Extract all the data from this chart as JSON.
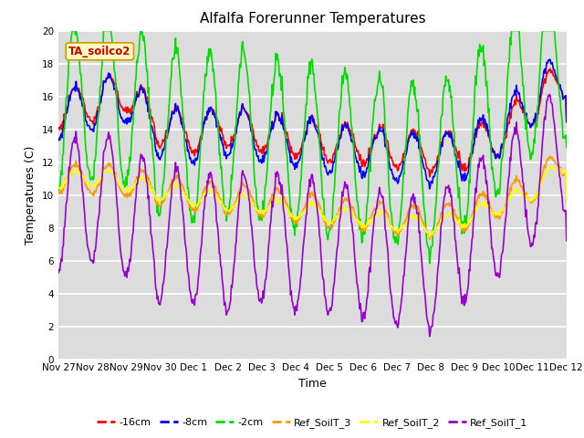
{
  "title": "Alfalfa Forerunner Temperatures",
  "xlabel": "Time",
  "ylabel": "Temperatures (C)",
  "ylim": [
    0,
    20
  ],
  "yticks": [
    0,
    2,
    4,
    6,
    8,
    10,
    12,
    14,
    16,
    18,
    20
  ],
  "xtick_labels": [
    "Nov 27",
    "Nov 28",
    "Nov 29",
    "Nov 30",
    "Dec 1",
    "Dec 2",
    "Dec 3",
    "Dec 4",
    "Dec 5",
    "Dec 6",
    "Dec 7",
    "Dec 8",
    "Dec 9",
    "Dec 10",
    "Dec 11",
    "Dec 12"
  ],
  "legend_label": "TA_soilco2",
  "series_colors": {
    "-16cm": "#ff0000",
    "-8cm": "#0000ff",
    "-2cm": "#00dd00",
    "Ref_SoilT_3": "#ff9900",
    "Ref_SoilT_2": "#ffff00",
    "Ref_SoilT_1": "#9900cc"
  },
  "background_color": "#dcdcdc",
  "grid_color": "#ffffff",
  "title_fontsize": 11,
  "axis_fontsize": 9,
  "tick_fontsize": 7.5
}
